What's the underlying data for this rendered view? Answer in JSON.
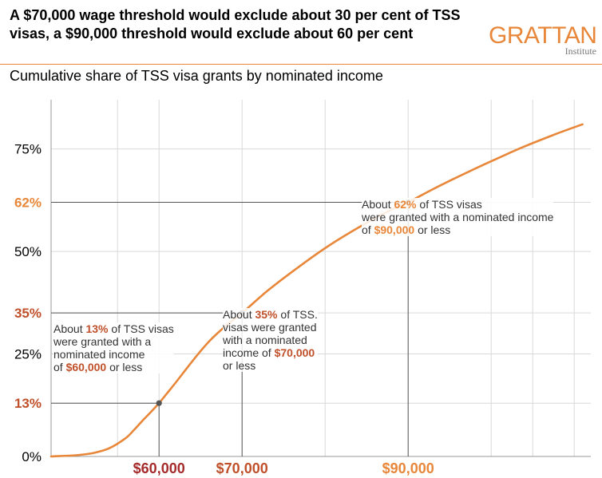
{
  "header": {
    "title": "A $70,000 wage threshold would exclude about 30 per cent of TSS visas, a $90,000 threshold would exclude about 60 per cent",
    "subtitle": "Cumulative share of TSS visa grants by nominated income",
    "logo_main": "GRATTAN",
    "logo_sub": "Institute"
  },
  "colors": {
    "accent": "#E8873A",
    "dark_red": "#A52A2A",
    "red": "#C0502A",
    "grid": "#d9d9d9",
    "axis": "#999999"
  },
  "chart_data": {
    "type": "line",
    "title": "A $70,000 wage threshold would exclude about 30 per cent of TSS visas, a $90,000 threshold would exclude about 60 per cent",
    "subtitle": "Cumulative share of TSS visa grants by nominated income",
    "xlabel": "",
    "ylabel": "",
    "xlim": [
      47000,
      112000
    ],
    "ylim": [
      0,
      87
    ],
    "grid": true,
    "x_gridlines": [
      55000,
      60000,
      70000,
      80000,
      90000,
      100000,
      105000,
      110000
    ],
    "x_ticks": [
      {
        "value": 60000,
        "label": "$60,000",
        "color": "#A52A2A"
      },
      {
        "value": 70000,
        "label": "$70,000",
        "color": "#C0502A"
      },
      {
        "value": 90000,
        "label": "$90,000",
        "color": "#E8873A"
      }
    ],
    "y_ticks": [
      {
        "value": 0,
        "label": "0%",
        "color": "#000000",
        "bold": false
      },
      {
        "value": 13,
        "label": "13%",
        "color": "#C0502A",
        "bold": true
      },
      {
        "value": 25,
        "label": "25%",
        "color": "#000000",
        "bold": false
      },
      {
        "value": 35,
        "label": "35%",
        "color": "#C0502A",
        "bold": true
      },
      {
        "value": 50,
        "label": "50%",
        "color": "#000000",
        "bold": false
      },
      {
        "value": 62,
        "label": "62%",
        "color": "#E8873A",
        "bold": true
      },
      {
        "value": 75,
        "label": "75%",
        "color": "#000000",
        "bold": false
      }
    ],
    "series": [
      {
        "color": "#E8873A",
        "x": [
          47000,
          50000,
          52000,
          54000,
          56000,
          57000,
          58000,
          59000,
          60000,
          61000,
          62000,
          64000,
          66000,
          68000,
          70000,
          73000,
          76000,
          80000,
          84000,
          88000,
          90000,
          93000,
          96000,
          100000,
          104000,
          108000,
          111000
        ],
        "y": [
          0,
          0.3,
          0.8,
          2,
          4.5,
          6.5,
          8.7,
          10.8,
          13,
          15.5,
          18,
          23.2,
          28,
          31.8,
          35,
          40.3,
          45,
          50.8,
          55.8,
          60.2,
          62,
          65.2,
          68.2,
          72,
          75.6,
          78.8,
          81
        ]
      }
    ],
    "highlight_points": [
      {
        "x": 60000,
        "y": 13
      },
      {
        "x": 70000,
        "y": 35
      },
      {
        "x": 90000,
        "y": 62
      }
    ]
  },
  "annotations": {
    "a13": {
      "l1a": "About ",
      "l1b": "13%",
      "l1c": " of TSS visas",
      "l2": "were granted with a",
      "l3": "nominated income",
      "l4a": "of ",
      "l4b": "$60,000",
      "l4c": " or less"
    },
    "a35": {
      "l1a": "About ",
      "l1b": "35%",
      "l1c": " of TSS.",
      "l2": "visas were granted",
      "l3": "with a nominated",
      "l4a": "income of ",
      "l4b": "$70,000",
      "l5": "or less"
    },
    "a62": {
      "l1a": "About ",
      "l1b": "62%",
      "l1c": " of TSS visas",
      "l2": "were granted with a nominated income",
      "l3a": "of ",
      "l3b": "$90,000",
      "l3c": " or less"
    }
  }
}
